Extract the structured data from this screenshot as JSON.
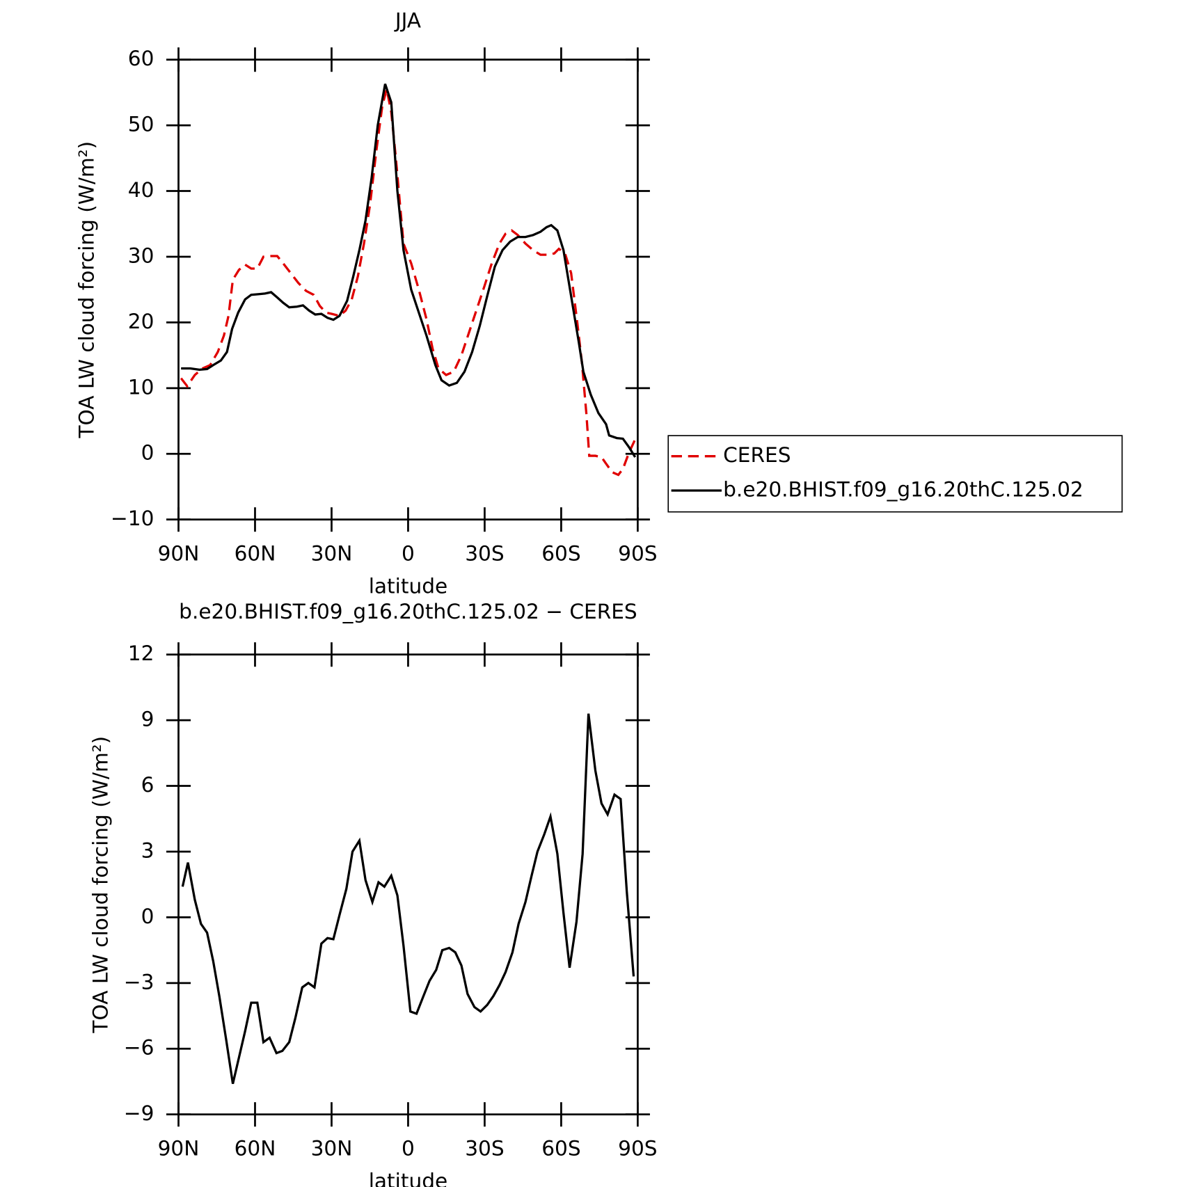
{
  "chart_data": [
    {
      "type": "line",
      "title": "JJA",
      "xlabel": "latitude",
      "ylabel": "TOA LW cloud forcing (W/m²)",
      "xlim": [
        90,
        -90
      ],
      "xticks": [
        {
          "value": 90,
          "label": "90N"
        },
        {
          "value": 60,
          "label": "60N"
        },
        {
          "value": 30,
          "label": "30N"
        },
        0,
        {
          "value": -30,
          "label": "30S"
        },
        {
          "value": -60,
          "label": "60S"
        },
        {
          "value": -90,
          "label": "90S"
        }
      ],
      "ylim": [
        -10,
        60
      ],
      "yticks": [
        {
          "value": -10,
          "label": "−10"
        },
        0,
        10,
        20,
        30,
        40,
        50,
        60
      ],
      "legend": "right",
      "series": [
        {
          "name": "CERES",
          "color": "#e00000",
          "style": "dashed",
          "x": [
            89.0,
            86.6,
            83.6,
            80.6,
            77.6,
            74.6,
            72.2,
            70.4,
            68.7,
            66.3,
            63.9,
            61.5,
            59.1,
            56.7,
            53.7,
            51.3,
            49.0,
            46.0,
            43.0,
            40.0,
            37.0,
            34.6,
            32.2,
            29.9,
            26.9,
            24.5,
            22.1,
            19.7,
            17.3,
            14.9,
            12.5,
            10.1,
            8.4,
            6.6,
            4.8,
            1.8,
            -1.2,
            -4.2,
            -7.2,
            -9.6,
            -11.9,
            -14.9,
            -17.9,
            -20.9,
            -23.9,
            -26.9,
            -29.9,
            -32.8,
            -35.8,
            -38.2,
            -40.6,
            -43.0,
            -46.0,
            -49.0,
            -51.9,
            -54.9,
            -57.3,
            -59.1,
            -61.5,
            -63.9,
            -66.3,
            -68.1,
            -69.9,
            -71.0,
            -73.4,
            -75.8,
            -77.6,
            -80.0,
            -82.4,
            -84.2,
            -86.6,
            -89.0
          ],
          "values": [
            11.5,
            10.3,
            12,
            13,
            13.5,
            15.5,
            18,
            21,
            26.5,
            28,
            28.8,
            28.2,
            28.2,
            30,
            30.1,
            30.1,
            29,
            27.5,
            26,
            24.8,
            24.2,
            22.5,
            21.5,
            21.3,
            21,
            21.8,
            23.5,
            27,
            32,
            38,
            46,
            53,
            55.5,
            52,
            45,
            32,
            29,
            25,
            20.5,
            16,
            13,
            12,
            12.5,
            15,
            18.5,
            22,
            25.5,
            29,
            32,
            33.5,
            34,
            33.3,
            32,
            31,
            30.3,
            30.3,
            30.5,
            31.2,
            30.5,
            27.5,
            20,
            14,
            6,
            -0.3,
            -0.3,
            -0.5,
            -1.5,
            -2.8,
            -3.2,
            -2.3,
            0.2,
            2.2
          ]
        },
        {
          "name": "b.e20.BHIST.f09_g16.20thC.125.02",
          "color": "#000000",
          "style": "solid",
          "x": [
            89.0,
            85.4,
            81.8,
            78.8,
            76.4,
            73.4,
            71.0,
            69.0,
            66.6,
            63.9,
            61.5,
            58.5,
            56.1,
            53.7,
            51.3,
            49.0,
            46.6,
            43.6,
            41.2,
            38.8,
            36.4,
            34.0,
            31.6,
            29.3,
            26.9,
            23.9,
            21.5,
            19.1,
            16.7,
            14.3,
            11.9,
            9.0,
            6.6,
            4.2,
            1.8,
            -1.2,
            -4.2,
            -7.2,
            -10.7,
            -13.1,
            -16.1,
            -19.1,
            -22.1,
            -25.1,
            -28.1,
            -31.0,
            -34.0,
            -37.0,
            -40.0,
            -43.0,
            -46.0,
            -49.0,
            -51.9,
            -54.3,
            -56.1,
            -58.5,
            -60.9,
            -63.9,
            -66.9,
            -68.7,
            -71.6,
            -74.6,
            -77.6,
            -78.8,
            -81.8,
            -84.2,
            -86.6,
            -89.0
          ],
          "values": [
            13.0,
            13.0,
            12.8,
            12.9,
            13.5,
            14.2,
            15.5,
            19.0,
            21.5,
            23.5,
            24.2,
            24.3,
            24.4,
            24.6,
            23.8,
            23.0,
            22.3,
            22.4,
            22.6,
            21.8,
            21.2,
            21.3,
            20.7,
            20.4,
            21.0,
            23.3,
            27.0,
            31.0,
            35.5,
            42.0,
            50.0,
            56.3,
            53.5,
            40.0,
            31.0,
            25.0,
            21.5,
            18.0,
            13.5,
            11.2,
            10.4,
            10.8,
            12.5,
            15.5,
            19.5,
            24.0,
            28.5,
            31.0,
            32.3,
            33.0,
            33.0,
            33.3,
            33.8,
            34.5,
            34.8,
            34.0,
            31.0,
            24.0,
            17.0,
            12.5,
            9.0,
            6.2,
            4.5,
            2.8,
            2.4,
            2.3,
            1.0,
            -0.5
          ]
        }
      ]
    },
    {
      "type": "line",
      "title": "b.e20.BHIST.f09_g16.20thC.125.02 − CERES",
      "xlabel": "latitude",
      "ylabel": "TOA LW cloud forcing (W/m²)",
      "xlim": [
        90,
        -90
      ],
      "xticks": [
        {
          "value": 90,
          "label": "90N"
        },
        {
          "value": 60,
          "label": "60N"
        },
        {
          "value": 30,
          "label": "30N"
        },
        0,
        {
          "value": -30,
          "label": "30S"
        },
        {
          "value": -60,
          "label": "60S"
        },
        {
          "value": -90,
          "label": "90S"
        }
      ],
      "ylim": [
        -9,
        12
      ],
      "yticks": [
        {
          "value": -9,
          "label": "−9"
        },
        {
          "value": -6,
          "label": "−6"
        },
        {
          "value": -3,
          "label": "−3"
        },
        0,
        3,
        6,
        9,
        12
      ],
      "series": [
        {
          "color": "#000000",
          "style": "solid",
          "x": [
            88.4,
            86.3,
            83.6,
            81.2,
            78.8,
            76.4,
            74.0,
            71.3,
            68.7,
            66.3,
            63.9,
            61.5,
            59.1,
            56.7,
            54.3,
            51.6,
            49.3,
            46.6,
            44.2,
            41.5,
            39.1,
            36.7,
            34.0,
            31.6,
            29.3,
            26.9,
            24.2,
            21.8,
            19.1,
            16.7,
            14.0,
            11.6,
            9.3,
            6.6,
            4.2,
            1.8,
            -0.9,
            -3.3,
            -6.0,
            -8.4,
            -11.0,
            -13.4,
            -16.1,
            -18.5,
            -20.9,
            -23.3,
            -26.0,
            -28.4,
            -31.0,
            -33.4,
            -35.8,
            -38.2,
            -40.9,
            -43.3,
            -46.0,
            -48.4,
            -50.7,
            -53.4,
            -55.8,
            -58.5,
            -60.9,
            -63.3,
            -66.0,
            -68.4,
            -70.7,
            -73.4,
            -75.8,
            -78.2,
            -80.9,
            -83.3,
            -85.7,
            -88.4
          ],
          "values": [
            1.4,
            2.5,
            0.8,
            -0.3,
            -0.7,
            -2,
            -3.6,
            -5.6,
            -7.6,
            -6.4,
            -5.2,
            -3.9,
            -3.9,
            -5.7,
            -5.5,
            -6.2,
            -6.1,
            -5.7,
            -4.6,
            -3.2,
            -3.0,
            -3.2,
            -1.2,
            -0.95,
            -1.0,
            0.1,
            1.3,
            3.0,
            3.5,
            1.7,
            0.7,
            1.6,
            1.4,
            1.9,
            1.0,
            -1.3,
            -4.3,
            -4.4,
            -3.6,
            -2.9,
            -2.4,
            -1.5,
            -1.4,
            -1.6,
            -2.2,
            -3.5,
            -4.1,
            -4.3,
            -4.0,
            -3.6,
            -3.1,
            -2.5,
            -1.6,
            -0.3,
            0.7,
            1.9,
            3.0,
            3.8,
            4.6,
            2.9,
            0.2,
            -2.3,
            -0.2,
            2.9,
            9.3,
            6.7,
            5.2,
            4.7,
            5.6,
            5.4,
            1.2,
            -2.7
          ]
        }
      ]
    }
  ]
}
